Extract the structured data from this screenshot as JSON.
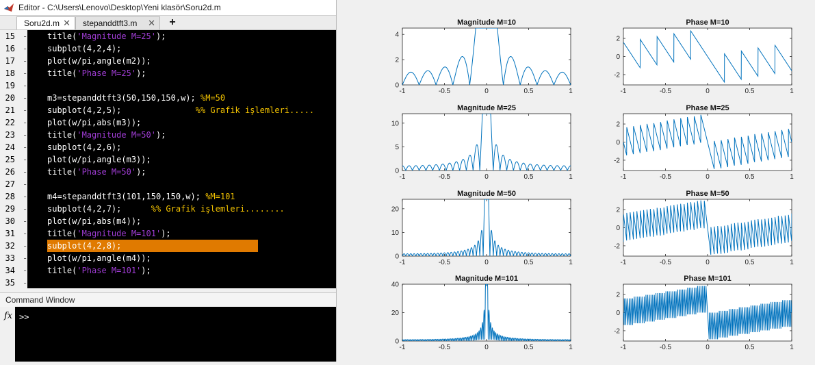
{
  "editor": {
    "window_title": "Editor - C:\\Users\\Lenovo\\Desktop\\Yeni klasör\\Soru2d.m",
    "tabs": [
      {
        "label": "Soru2d.m",
        "active": true
      },
      {
        "label": "stepanddtft3.m",
        "active": false
      }
    ],
    "add_tab_label": "+",
    "close_glyph": "✕",
    "highlight_line": 32,
    "lines": [
      {
        "n": "15",
        "parts": [
          [
            "p",
            "title("
          ],
          [
            "s",
            "'Magnitude M=25'"
          ],
          [
            "p",
            ");"
          ]
        ]
      },
      {
        "n": "16",
        "parts": [
          [
            "p",
            "subplot(4,2,4);"
          ]
        ]
      },
      {
        "n": "17",
        "parts": [
          [
            "p",
            "plot(w/pi,angle(m2));"
          ]
        ]
      },
      {
        "n": "18",
        "parts": [
          [
            "p",
            "title("
          ],
          [
            "s",
            "'Phase M=25'"
          ],
          [
            "p",
            ");"
          ]
        ]
      },
      {
        "n": "19",
        "parts": []
      },
      {
        "n": "20",
        "parts": [
          [
            "p",
            "m3=stepanddtft3(50,150,150,w); "
          ],
          [
            "c",
            "%M=50"
          ]
        ]
      },
      {
        "n": "21",
        "parts": [
          [
            "p",
            "subplot(4,2,5);               "
          ],
          [
            "c",
            "%% Grafik işlemleri....."
          ]
        ]
      },
      {
        "n": "22",
        "parts": [
          [
            "p",
            "plot(w/pi,abs(m3));"
          ]
        ]
      },
      {
        "n": "23",
        "parts": [
          [
            "p",
            "title("
          ],
          [
            "s",
            "'Magnitude M=50'"
          ],
          [
            "p",
            ");"
          ]
        ]
      },
      {
        "n": "24",
        "parts": [
          [
            "p",
            "subplot(4,2,6);"
          ]
        ]
      },
      {
        "n": "25",
        "parts": [
          [
            "p",
            "plot(w/pi,angle(m3));"
          ]
        ]
      },
      {
        "n": "26",
        "parts": [
          [
            "p",
            "title("
          ],
          [
            "s",
            "'Phase M=50'"
          ],
          [
            "p",
            ");"
          ]
        ]
      },
      {
        "n": "27",
        "parts": []
      },
      {
        "n": "28",
        "parts": [
          [
            "p",
            "m4=stepanddtft3(101,150,150,w); "
          ],
          [
            "c",
            "%M=101"
          ]
        ]
      },
      {
        "n": "29",
        "parts": [
          [
            "p",
            "subplot(4,2,7);      "
          ],
          [
            "c",
            "%% Grafik işlemleri........"
          ]
        ]
      },
      {
        "n": "30",
        "parts": [
          [
            "p",
            "plot(w/pi,abs(m4));"
          ]
        ]
      },
      {
        "n": "31",
        "parts": [
          [
            "p",
            "title("
          ],
          [
            "s",
            "'Magnitude M=101'"
          ],
          [
            "p",
            ");"
          ]
        ]
      },
      {
        "n": "32",
        "parts": [
          [
            "p",
            "subplot(4,2,8);"
          ]
        ]
      },
      {
        "n": "33",
        "parts": [
          [
            "p",
            "plot(w/pi,angle(m4));"
          ]
        ]
      },
      {
        "n": "34",
        "parts": [
          [
            "p",
            "title("
          ],
          [
            "s",
            "'Phase M=101'"
          ],
          [
            "p",
            ");"
          ]
        ]
      },
      {
        "n": "35",
        "parts": []
      }
    ]
  },
  "command_window": {
    "title": "Command Window",
    "fx_label": "fx",
    "prompt": ">>"
  },
  "colors": {
    "string": "#a13dd6",
    "comment": "#f2c200",
    "highlight": "#e07a00",
    "plot_line": "#0072bd"
  },
  "chart_data": [
    {
      "type": "line",
      "title": "Magnitude M=10",
      "kind": "magnitude",
      "M": 10,
      "xlim": [
        -1,
        1
      ],
      "ylim": [
        0,
        4.5
      ],
      "xticks": [
        "-1",
        "-0.5",
        "0",
        "0.5",
        "1"
      ],
      "yticks": [
        {
          "v": 0,
          "t": "0"
        },
        {
          "v": 2,
          "t": "2"
        },
        {
          "v": 4,
          "t": "4"
        }
      ]
    },
    {
      "type": "line",
      "title": "Phase M=10",
      "kind": "phase",
      "M": 10,
      "xlim": [
        -1,
        1
      ],
      "ylim": [
        -3.14,
        3.14
      ],
      "xticks": [
        "-1",
        "-0.5",
        "0",
        "0.5",
        "1"
      ],
      "yticks": [
        {
          "v": -2,
          "t": "-2"
        },
        {
          "v": 0,
          "t": "0"
        },
        {
          "v": 2,
          "t": "2"
        }
      ]
    },
    {
      "type": "line",
      "title": "Magnitude M=25",
      "kind": "magnitude",
      "M": 25,
      "xlim": [
        -1,
        1
      ],
      "ylim": [
        0,
        12
      ],
      "xticks": [
        "-1",
        "-0.5",
        "0",
        "0.5",
        "1"
      ],
      "yticks": [
        {
          "v": 0,
          "t": "0"
        },
        {
          "v": 5,
          "t": "5"
        },
        {
          "v": 10,
          "t": "10"
        }
      ]
    },
    {
      "type": "line",
      "title": "Phase M=25",
      "kind": "phase",
      "M": 25,
      "xlim": [
        -1,
        1
      ],
      "ylim": [
        -3.14,
        3.14
      ],
      "xticks": [
        "-1",
        "-0.5",
        "0",
        "0.5",
        "1"
      ],
      "yticks": [
        {
          "v": -2,
          "t": "-2"
        },
        {
          "v": 0,
          "t": "0"
        },
        {
          "v": 2,
          "t": "2"
        }
      ]
    },
    {
      "type": "line",
      "title": "Magnitude M=50",
      "kind": "magnitude",
      "M": 50,
      "xlim": [
        -1,
        1
      ],
      "ylim": [
        0,
        24
      ],
      "xticks": [
        "-1",
        "-0.5",
        "0",
        "0.5",
        "1"
      ],
      "yticks": [
        {
          "v": 0,
          "t": "0"
        },
        {
          "v": 10,
          "t": "10"
        },
        {
          "v": 20,
          "t": "20"
        }
      ]
    },
    {
      "type": "line",
      "title": "Phase M=50",
      "kind": "phase",
      "M": 50,
      "xlim": [
        -1,
        1
      ],
      "ylim": [
        -3.14,
        3.14
      ],
      "xticks": [
        "-1",
        "-0.5",
        "0",
        "0.5",
        "1"
      ],
      "yticks": [
        {
          "v": -2,
          "t": "-2"
        },
        {
          "v": 0,
          "t": "0"
        },
        {
          "v": 2,
          "t": "2"
        }
      ]
    },
    {
      "type": "line",
      "title": "Magnitude M=101",
      "kind": "magnitude",
      "M": 101,
      "xlim": [
        -1,
        1
      ],
      "ylim": [
        0,
        40
      ],
      "xticks": [
        "-1",
        "-0.5",
        "0",
        "0.5",
        "1"
      ],
      "yticks": [
        {
          "v": 0,
          "t": "0"
        },
        {
          "v": 20,
          "t": "20"
        },
        {
          "v": 40,
          "t": "40"
        }
      ]
    },
    {
      "type": "line",
      "title": "Phase M=101",
      "kind": "phase",
      "M": 101,
      "xlim": [
        -1,
        1
      ],
      "ylim": [
        -3.14,
        3.14
      ],
      "xticks": [
        "-1",
        "-0.5",
        "0",
        "0.5",
        "1"
      ],
      "yticks": [
        {
          "v": -2,
          "t": "-2"
        },
        {
          "v": 0,
          "t": "0"
        },
        {
          "v": 2,
          "t": "2"
        }
      ]
    }
  ]
}
